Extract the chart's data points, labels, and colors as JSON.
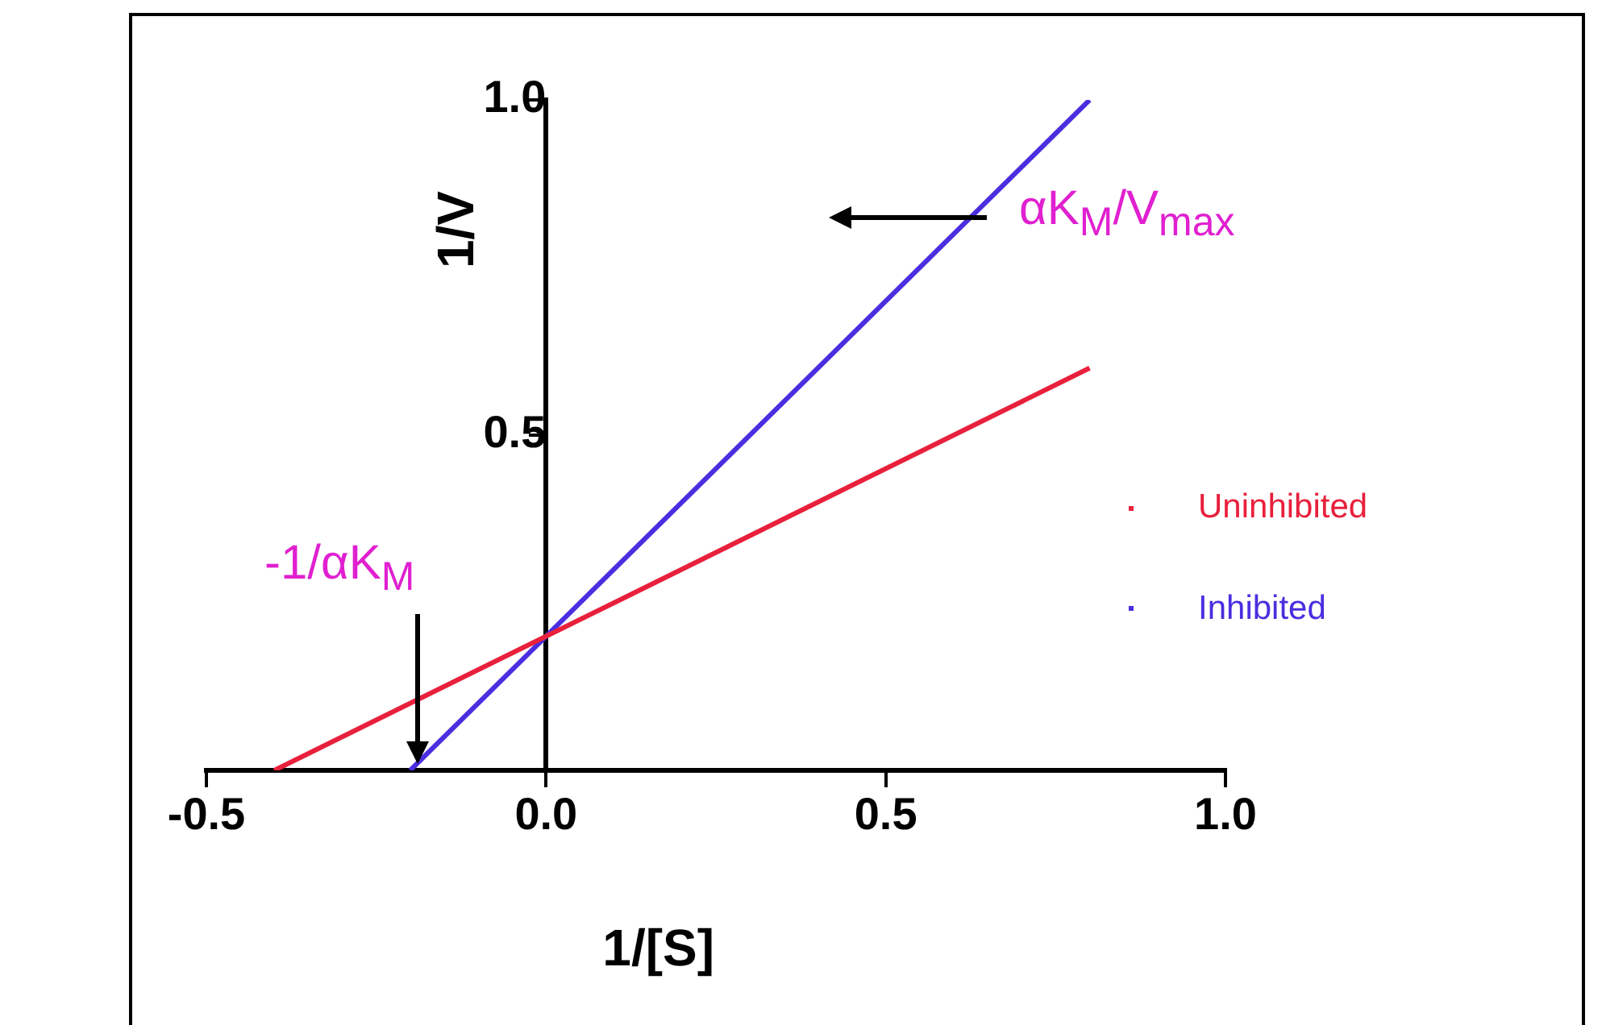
{
  "chart_data": {
    "type": "line",
    "xlabel": "1/[S]",
    "ylabel": "1/V",
    "series": [
      {
        "name": "Uninhibited",
        "color": "#e8203c",
        "x": [
          -0.4,
          0.8
        ],
        "values": [
          0,
          0.6
        ]
      },
      {
        "name": "Inhibited",
        "color": "#4a2ee0",
        "x": [
          -0.2,
          0.8
        ],
        "values": [
          0,
          1.0
        ]
      }
    ],
    "xlim": [
      -0.5,
      1.0
    ],
    "xticks": [
      {
        "value": -0.5,
        "label": "-0.5"
      },
      {
        "value": 0,
        "label": "0.0"
      },
      {
        "value": 0.5,
        "label": "0.5"
      },
      {
        "value": 1,
        "label": "1.0"
      }
    ],
    "ylim": [
      0,
      1.0
    ],
    "yticks": [
      {
        "value": 0,
        "label": null
      },
      0.5,
      {
        "value": 1,
        "label": "1.0"
      }
    ],
    "annotations": [
      "αK$_{M}$/V$_{max}$",
      "-1/αK$_{M}$"
    ],
    "grid": false,
    "legend": "right",
    "marker": "none",
    "line_style": "solid"
  }
}
